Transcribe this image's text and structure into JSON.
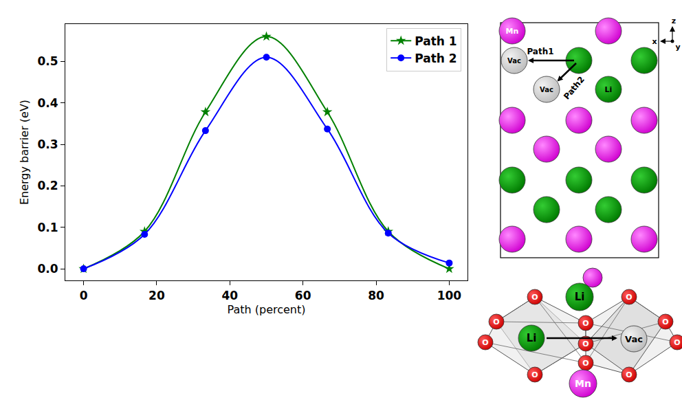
{
  "chart_data": {
    "type": "line",
    "x_label": "Path (percent)",
    "y_label": "Energy barrier (eV)",
    "x": [
      0,
      16.67,
      33.33,
      50,
      66.67,
      83.33,
      100
    ],
    "series": [
      {
        "name": "Path 1",
        "color": "#008000",
        "marker": "star",
        "line_style": "solid",
        "values": [
          0,
          0.09,
          0.378,
          0.56,
          0.378,
          0.09,
          0
        ]
      },
      {
        "name": "Path 2",
        "color": "#0000ff",
        "marker": "circle",
        "line_style": "solid",
        "values": [
          0,
          0.083,
          0.333,
          0.51,
          0.337,
          0.086,
          0.014
        ]
      }
    ],
    "xlim": [
      -5,
      105
    ],
    "xticks": [
      0,
      20,
      40,
      60,
      80,
      100
    ],
    "ylim": [
      -0.028,
      0.59
    ],
    "yticks": [
      {
        "value": 0,
        "label": "0.0"
      },
      0.1,
      0.2,
      0.3,
      0.4,
      0.5
    ],
    "grid": false,
    "legend": "upper right"
  },
  "diagram": {
    "top": {
      "mn": "Mn",
      "li": "Li",
      "vac": "Vac",
      "path1": "Path1",
      "path2": "Path2",
      "axis_z": "z",
      "axis_x": "x",
      "axis_y": "y"
    },
    "bottom": {
      "o": "O",
      "li": "Li",
      "vac": "Vac",
      "mn": "Mn"
    }
  }
}
